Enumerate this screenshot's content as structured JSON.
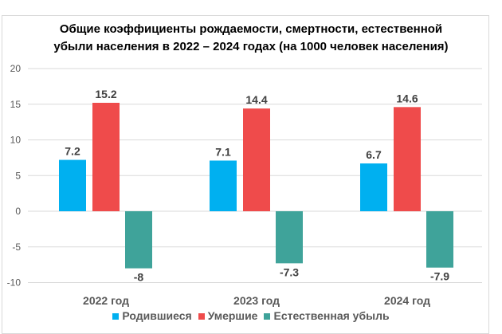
{
  "chart_data": {
    "type": "bar",
    "title": "Общие коэффициенты рождаемости, смертности, естественной убыли населения в 2022 – 2024 годах (на 1000 человек населения)",
    "title_lines": [
      "Общие коэффициенты рождаемости, смертности, естественной",
      "убыли населения в 2022 – 2024 годах (на 1000 человек населения)"
    ],
    "categories": [
      "2022 год",
      "2023 год",
      "2024 год"
    ],
    "series": [
      {
        "name": "Родившиеся",
        "color": "#00b0f0",
        "values": [
          7.2,
          7.1,
          6.7
        ],
        "labels": [
          "7.2",
          "7.1",
          "6.7"
        ]
      },
      {
        "name": "Умершие",
        "color": "#ef4b4b",
        "values": [
          15.2,
          14.4,
          14.6
        ],
        "labels": [
          "15.2",
          "14.4",
          "14.6"
        ]
      },
      {
        "name": "Естественная убыль",
        "color": "#3fa39a",
        "values": [
          -8,
          -7.3,
          -7.9
        ],
        "labels": [
          "-8",
          "-7.3",
          "-7.9"
        ]
      }
    ],
    "ylim": [
      -10,
      20
    ],
    "yticks": [
      20,
      15,
      10,
      5,
      0,
      -5,
      -10
    ],
    "grid": true,
    "legend": "bottom"
  }
}
